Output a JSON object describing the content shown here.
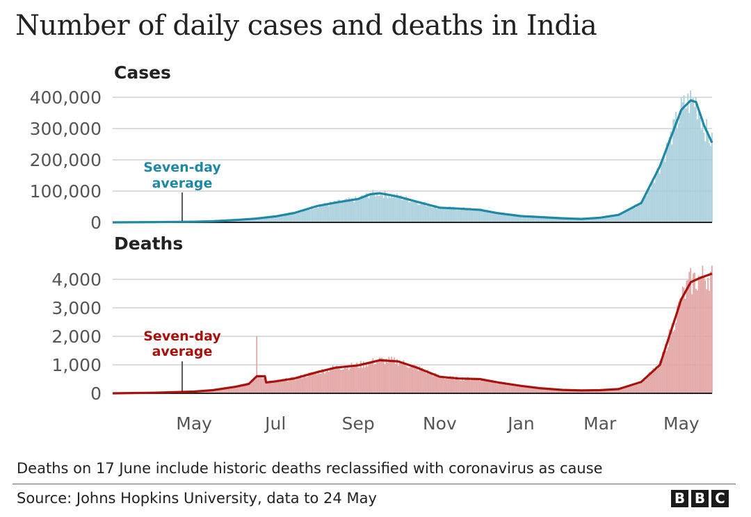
{
  "title": "Number of daily cases and deaths in India",
  "note": "Deaths on 17 June include historic deaths reclassified with coronavirus as cause",
  "source": "Source: Johns Hopkins University, data to 24 May",
  "logo": [
    "B",
    "B",
    "C"
  ],
  "colors": {
    "cases_line": "#1f88a6",
    "cases_bar": "#a9cfdc",
    "deaths_line": "#a8120d",
    "deaths_bar": "#e2a3a3",
    "grid": "#c8c8c8",
    "axis": "#222222"
  },
  "chart_data": [
    {
      "type": "bar",
      "panel_title": "Cases",
      "annotation": "Seven-day average",
      "annotation_lines": [
        "Seven-day",
        "average"
      ],
      "ylim": [
        0,
        400000
      ],
      "y_ticks": [
        0,
        100000,
        200000,
        300000,
        400000
      ],
      "y_tick_labels": [
        "0",
        "100,000",
        "200,000",
        "300,000",
        "400,000"
      ],
      "x_ticks": [
        "May",
        "Jul",
        "Sep",
        "Nov",
        "Jan",
        "Mar",
        "May"
      ],
      "x_range": [
        "2020-03-01",
        "2021-05-24"
      ],
      "series": [
        {
          "kind": "seven-day-average",
          "points": [
            [
              "2020-03-01",
              0
            ],
            [
              "2020-04-01",
              800
            ],
            [
              "2020-05-01",
              1900
            ],
            [
              "2020-05-15",
              3500
            ],
            [
              "2020-06-01",
              7500
            ],
            [
              "2020-06-15",
              11500
            ],
            [
              "2020-07-01",
              19000
            ],
            [
              "2020-07-15",
              30000
            ],
            [
              "2020-08-01",
              52000
            ],
            [
              "2020-08-15",
              63000
            ],
            [
              "2020-09-01",
              75000
            ],
            [
              "2020-09-10",
              90000
            ],
            [
              "2020-09-17",
              93000
            ],
            [
              "2020-09-24",
              88000
            ],
            [
              "2020-10-01",
              82000
            ],
            [
              "2020-10-15",
              66000
            ],
            [
              "2020-11-01",
              47000
            ],
            [
              "2020-11-15",
              44000
            ],
            [
              "2020-12-01",
              40000
            ],
            [
              "2020-12-15",
              29000
            ],
            [
              "2021-01-01",
              20000
            ],
            [
              "2021-01-15",
              17000
            ],
            [
              "2021-02-01",
              13000
            ],
            [
              "2021-02-15",
              11000
            ],
            [
              "2021-03-01",
              15000
            ],
            [
              "2021-03-15",
              24000
            ],
            [
              "2021-04-01",
              62000
            ],
            [
              "2021-04-15",
              180000
            ],
            [
              "2021-05-01",
              360000
            ],
            [
              "2021-05-08",
              390000
            ],
            [
              "2021-05-12",
              385000
            ],
            [
              "2021-05-18",
              310000
            ],
            [
              "2021-05-24",
              255000
            ]
          ]
        }
      ]
    },
    {
      "type": "bar",
      "panel_title": "Deaths",
      "annotation": "Seven-day average",
      "annotation_lines": [
        "Seven-day",
        "average"
      ],
      "ylim": [
        0,
        4000
      ],
      "y_ticks": [
        0,
        1000,
        2000,
        3000,
        4000
      ],
      "y_tick_labels": [
        "0",
        "1,000",
        "2,000",
        "3,000",
        "4,000"
      ],
      "x_ticks": [
        "May",
        "Jul",
        "Sep",
        "Nov",
        "Jan",
        "Mar",
        "May"
      ],
      "x_range": [
        "2020-03-01",
        "2021-05-24"
      ],
      "spike": {
        "date": "2020-06-17",
        "value": 2000
      },
      "series": [
        {
          "kind": "seven-day-average",
          "points": [
            [
              "2020-03-01",
              0
            ],
            [
              "2020-04-01",
              20
            ],
            [
              "2020-05-01",
              60
            ],
            [
              "2020-05-15",
              110
            ],
            [
              "2020-06-01",
              230
            ],
            [
              "2020-06-11",
              330
            ],
            [
              "2020-06-17",
              600
            ],
            [
              "2020-06-23",
              600
            ],
            [
              "2020-06-24",
              380
            ],
            [
              "2020-07-01",
              420
            ],
            [
              "2020-07-15",
              520
            ],
            [
              "2020-08-01",
              740
            ],
            [
              "2020-08-15",
              900
            ],
            [
              "2020-09-01",
              980
            ],
            [
              "2020-09-17",
              1160
            ],
            [
              "2020-10-01",
              1120
            ],
            [
              "2020-10-15",
              900
            ],
            [
              "2020-11-01",
              580
            ],
            [
              "2020-11-15",
              520
            ],
            [
              "2020-12-01",
              500
            ],
            [
              "2020-12-15",
              380
            ],
            [
              "2021-01-01",
              260
            ],
            [
              "2021-01-15",
              180
            ],
            [
              "2021-02-01",
              120
            ],
            [
              "2021-02-15",
              100
            ],
            [
              "2021-03-01",
              110
            ],
            [
              "2021-03-15",
              150
            ],
            [
              "2021-04-01",
              400
            ],
            [
              "2021-04-15",
              1000
            ],
            [
              "2021-05-01",
              3300
            ],
            [
              "2021-05-08",
              3900
            ],
            [
              "2021-05-15",
              4050
            ],
            [
              "2021-05-24",
              4200
            ]
          ]
        }
      ]
    }
  ]
}
